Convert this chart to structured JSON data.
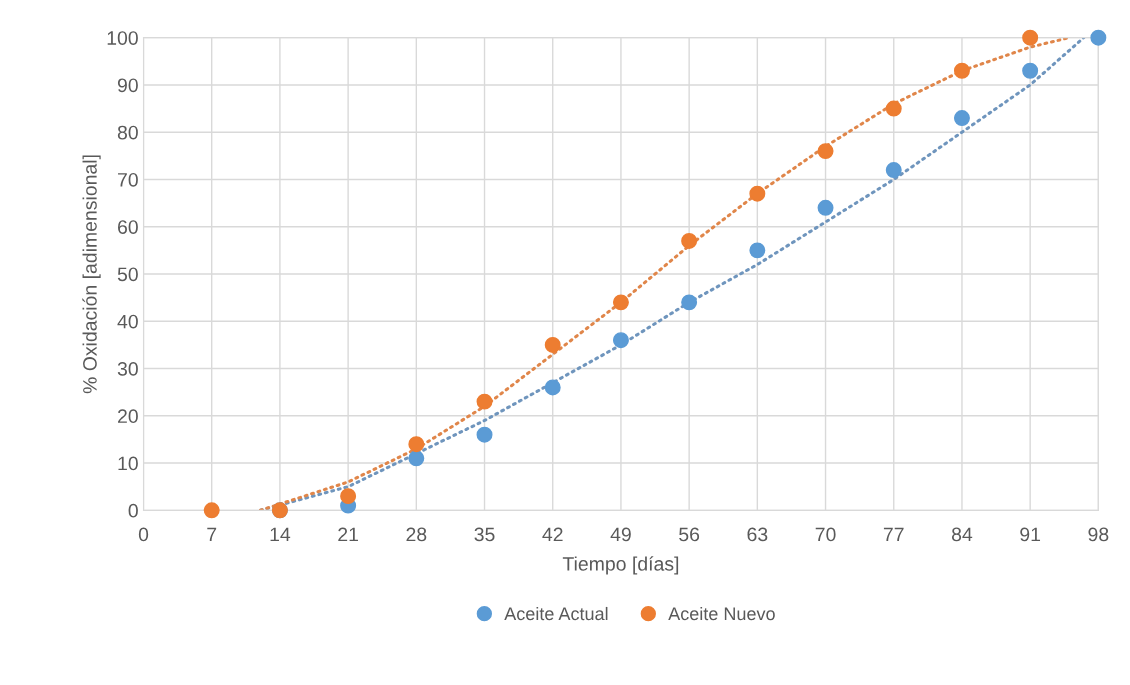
{
  "chart_data": {
    "type": "scatter",
    "xlabel": "Tiempo [días]",
    "ylabel": "% Oxidación [adimensional]",
    "xlim": [
      0,
      98
    ],
    "xticks": [
      0,
      7,
      14,
      21,
      28,
      35,
      42,
      49,
      56,
      63,
      70,
      77,
      84,
      91,
      98
    ],
    "ylim": [
      0,
      100
    ],
    "yticks": [
      0,
      10,
      20,
      30,
      40,
      50,
      60,
      70,
      80,
      90,
      100
    ],
    "grid": true,
    "legend": "bottom",
    "marker": "circle",
    "series": [
      {
        "type": "line",
        "line_style": "dotted",
        "marker": "none",
        "color": "#6f95bd",
        "x": [
          12,
          21,
          28,
          35,
          42,
          49,
          56,
          63,
          70,
          77,
          84,
          91,
          96.5
        ],
        "values": [
          0,
          5,
          12,
          19,
          27,
          35,
          44,
          52,
          61,
          70,
          80,
          90,
          100
        ]
      },
      {
        "type": "line",
        "line_style": "dotted",
        "marker": "none",
        "color": "#e0864a",
        "x": [
          12,
          21,
          28,
          35,
          42,
          49,
          56,
          63,
          70,
          77,
          84,
          91,
          95
        ],
        "values": [
          0,
          6,
          13,
          22,
          33,
          44,
          56,
          67,
          77,
          86,
          93,
          98,
          100
        ]
      },
      {
        "name": "Aceite Actual",
        "color": "#5b9bd5",
        "x": [
          14,
          21,
          28,
          35,
          42,
          49,
          56,
          63,
          70,
          77,
          84,
          91,
          98
        ],
        "values": [
          0,
          1,
          11,
          16,
          26,
          36,
          44,
          55,
          64,
          72,
          83,
          93,
          100
        ]
      },
      {
        "name": "Aceite Nuevo",
        "color": "#ed7d31",
        "x": [
          7,
          14,
          21,
          28,
          35,
          42,
          49,
          56,
          63,
          70,
          77,
          84,
          91
        ],
        "values": [
          0,
          0,
          3,
          14,
          23,
          35,
          44,
          57,
          67,
          76,
          85,
          93,
          100
        ]
      }
    ]
  }
}
